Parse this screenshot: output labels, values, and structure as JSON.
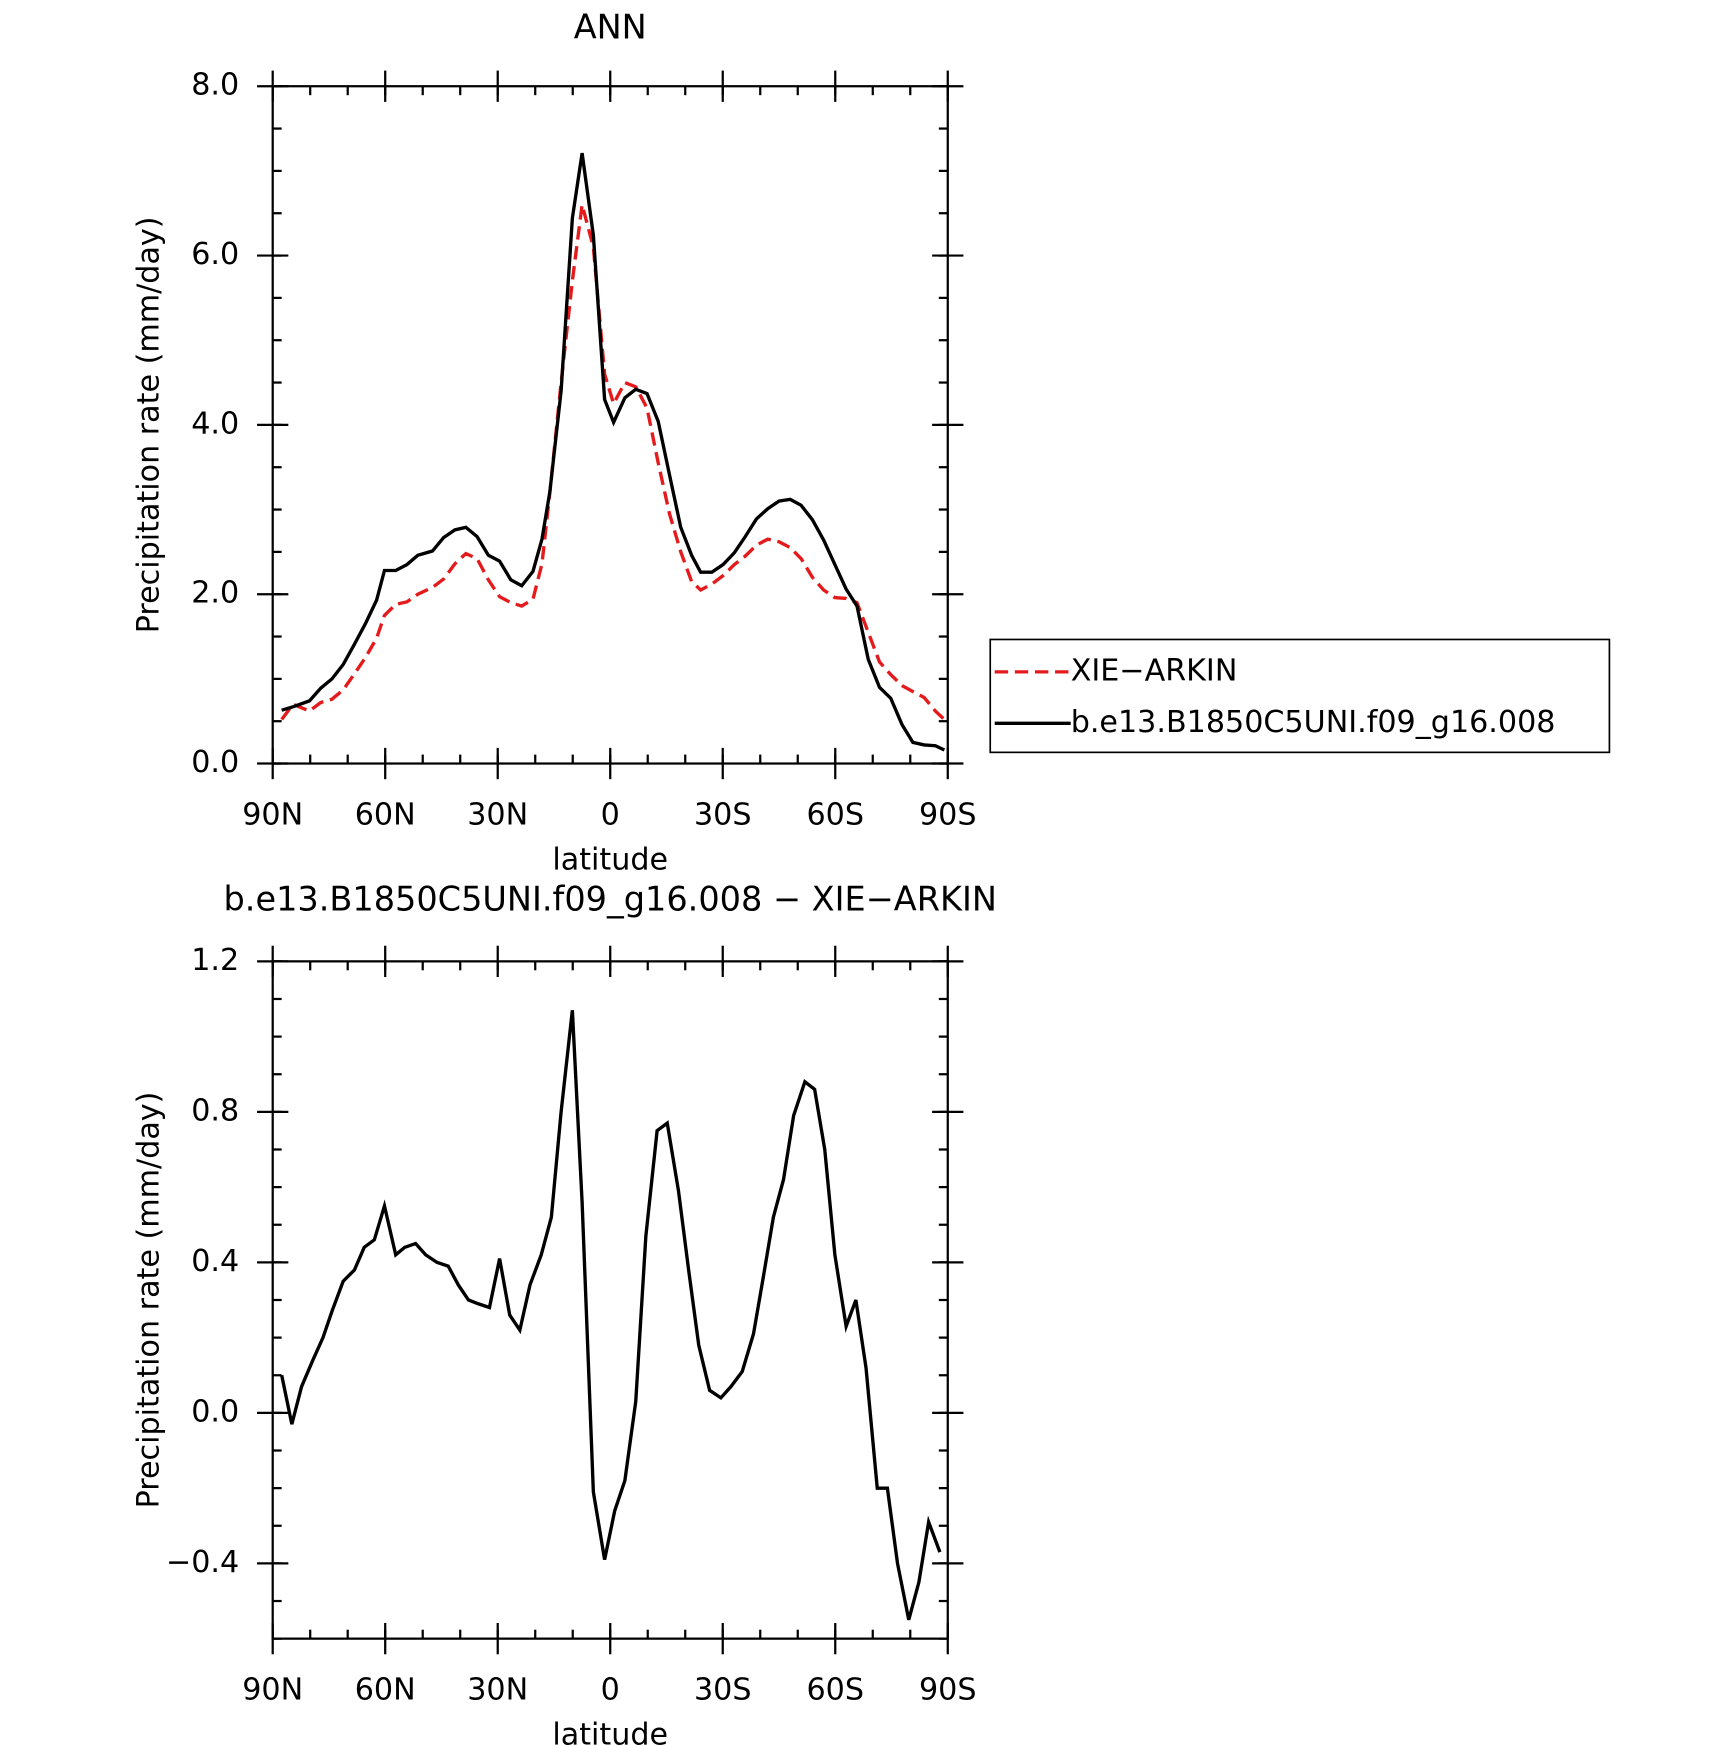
{
  "chart_data": [
    {
      "type": "line",
      "title": "ANN",
      "x_label": "latitude",
      "y_label": "Precipitation rate (mm/day)",
      "x": [
        87.6,
        84.6,
        80.2,
        77.2,
        74.2,
        71.2,
        68.2,
        65.3,
        62.3,
        60.2,
        57.2,
        54.2,
        51.3,
        47.4,
        44.4,
        41.4,
        38.5,
        35.5,
        32.5,
        29.5,
        26.5,
        23.6,
        20.6,
        18.2,
        16.1,
        13.1,
        10.1,
        7.5,
        4.5,
        1.5,
        -0.9,
        -3.9,
        -6.8,
        -9.8,
        -12.8,
        -15.8,
        -18.8,
        -21.7,
        -24.1,
        -27.1,
        -30.1,
        -33.1,
        -36.0,
        -39.0,
        -42.0,
        -45.0,
        -48.0,
        -50.9,
        -53.9,
        -56.9,
        -59.9,
        -62.9,
        -65.8,
        -68.8,
        -71.8,
        -74.8,
        -77.8,
        -80.7,
        -83.7,
        -86.7,
        -89.1
      ],
      "series": [
        {
          "name": "XIE−ARKIN",
          "color": "#e41a1c",
          "dash": "dashed",
          "values": [
            0.52,
            0.7,
            0.62,
            0.72,
            0.76,
            0.87,
            1.06,
            1.25,
            1.48,
            1.75,
            1.88,
            1.91,
            2.0,
            2.08,
            2.18,
            2.36,
            2.48,
            2.42,
            2.17,
            1.97,
            1.9,
            1.86,
            1.94,
            2.36,
            3.2,
            4.5,
            5.7,
            6.6,
            6.1,
            4.6,
            4.25,
            4.5,
            4.45,
            4.2,
            3.55,
            2.95,
            2.5,
            2.15,
            2.05,
            2.12,
            2.22,
            2.35,
            2.45,
            2.58,
            2.65,
            2.62,
            2.55,
            2.42,
            2.2,
            2.05,
            1.96,
            1.95,
            1.9,
            1.55,
            1.2,
            1.05,
            0.92,
            0.85,
            0.78,
            0.62,
            0.52
          ]
        },
        {
          "name": "b.e13.B1850C5UNI.f09_g16.008",
          "color": "#000000",
          "dash": "solid",
          "values": [
            0.63,
            0.67,
            0.74,
            0.89,
            1.0,
            1.17,
            1.41,
            1.65,
            1.93,
            2.28,
            2.28,
            2.35,
            2.46,
            2.51,
            2.67,
            2.76,
            2.79,
            2.68,
            2.46,
            2.39,
            2.17,
            2.1,
            2.27,
            2.65,
            3.21,
            4.4,
            6.44,
            7.21,
            6.24,
            4.3,
            4.03,
            4.32,
            4.42,
            4.37,
            4.04,
            3.41,
            2.79,
            2.46,
            2.26,
            2.26,
            2.35,
            2.49,
            2.68,
            2.89,
            3.01,
            3.1,
            3.12,
            3.05,
            2.88,
            2.64,
            2.35,
            2.06,
            1.86,
            1.23,
            0.9,
            0.77,
            0.46,
            0.25,
            0.22,
            0.21,
            0.16
          ]
        }
      ],
      "xlim": [
        90,
        -90
      ],
      "xticks": [
        {
          "value": 90,
          "label": "90N"
        },
        {
          "value": 60,
          "label": "60N"
        },
        {
          "value": 30,
          "label": "30N"
        },
        0,
        {
          "value": -30,
          "label": "30S"
        },
        {
          "value": -60,
          "label": "60S"
        },
        {
          "value": -90,
          "label": "90S"
        }
      ],
      "ylim": [
        0,
        8
      ],
      "yticks": [
        {
          "value": 0,
          "label": "0.0"
        },
        {
          "value": 2,
          "label": "2.0"
        },
        {
          "value": 4,
          "label": "4.0"
        },
        {
          "value": 6,
          "label": "6.0"
        },
        {
          "value": 8,
          "label": "8.0"
        }
      ],
      "legend": "outside right"
    },
    {
      "type": "line",
      "title": "b.e13.B1850C5UNI.f09_g16.008 − XIE−ARKIN",
      "x_label": "latitude",
      "y_label": "Precipitation rate (mm/day)",
      "x": [
        87.6,
        84.9,
        82.3,
        79.3,
        76.6,
        74.2,
        71.2,
        68.2,
        65.6,
        62.9,
        60.2,
        57.2,
        54.8,
        51.9,
        49.2,
        46.2,
        43.2,
        40.5,
        37.8,
        35.2,
        32.2,
        29.5,
        26.8,
        24.1,
        21.4,
        18.4,
        15.7,
        13.1,
        10.1,
        7.5,
        4.5,
        1.5,
        -1.2,
        -3.9,
        -6.8,
        -9.5,
        -12.5,
        -15.2,
        -18.2,
        -20.9,
        -23.6,
        -26.5,
        -29.5,
        -32.2,
        -35.2,
        -38.2,
        -40.8,
        -43.5,
        -46.2,
        -48.9,
        -51.9,
        -54.5,
        -57.2,
        -59.9,
        -62.9,
        -65.5,
        -68.2,
        -71.2,
        -73.9,
        -76.6,
        -79.6,
        -82.3,
        -84.9,
        -87.9
      ],
      "series": [
        {
          "color": "#000000",
          "dash": "solid",
          "values": [
            0.1,
            -0.03,
            0.07,
            0.14,
            0.2,
            0.27,
            0.35,
            0.38,
            0.44,
            0.46,
            0.55,
            0.42,
            0.44,
            0.45,
            0.42,
            0.4,
            0.39,
            0.34,
            0.3,
            0.29,
            0.28,
            0.41,
            0.26,
            0.22,
            0.34,
            0.42,
            0.52,
            0.8,
            1.07,
            0.56,
            -0.21,
            -0.39,
            -0.26,
            -0.18,
            0.03,
            0.47,
            0.75,
            0.77,
            0.59,
            0.38,
            0.18,
            0.06,
            0.04,
            0.07,
            0.11,
            0.21,
            0.36,
            0.52,
            0.62,
            0.79,
            0.88,
            0.86,
            0.7,
            0.42,
            0.23,
            0.3,
            0.12,
            -0.2,
            -0.2,
            -0.4,
            -0.55,
            -0.45,
            -0.29,
            -0.37
          ]
        }
      ],
      "xlim": [
        90,
        -90
      ],
      "xticks": [
        {
          "value": 90,
          "label": "90N"
        },
        {
          "value": 60,
          "label": "60N"
        },
        {
          "value": 30,
          "label": "30N"
        },
        0,
        {
          "value": -30,
          "label": "30S"
        },
        {
          "value": -60,
          "label": "60S"
        },
        {
          "value": -90,
          "label": "90S"
        }
      ],
      "ylim": [
        -0.6,
        1.2
      ],
      "yticks": [
        {
          "value": -0.4,
          "label": "−0.4"
        },
        {
          "value": 0,
          "label": "0.0"
        },
        0.4,
        0.8,
        1.2
      ]
    }
  ]
}
